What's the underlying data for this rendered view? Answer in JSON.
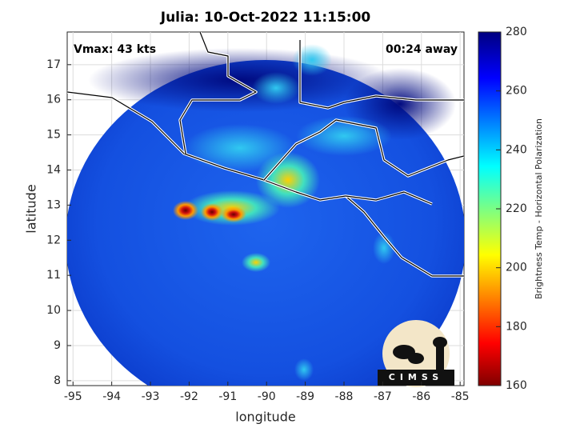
{
  "chart_data": {
    "type": "map",
    "title": "Julia: 10-Oct-2022 11:15:00",
    "annotations": [
      "Vmax: 43 kts",
      "00:24 away"
    ],
    "xlabel": "longitude",
    "ylabel": "latitude",
    "xlim": [
      -95.15,
      -84.9
    ],
    "ylim": [
      7.86,
      17.93
    ],
    "xticks": [
      -95,
      -94,
      -93,
      -92,
      -91,
      -90,
      -89,
      -88,
      -87,
      -86,
      -85
    ],
    "yticks": [
      8,
      9,
      10,
      11,
      12,
      13,
      14,
      15,
      16,
      17
    ],
    "grid": true,
    "colorbar": {
      "label": "Brightness Temp - Horizontal Polarization",
      "lim": [
        160,
        280
      ],
      "ticks": [
        160,
        180,
        200,
        220,
        240,
        260,
        280
      ]
    },
    "logo": "CIMSS"
  }
}
